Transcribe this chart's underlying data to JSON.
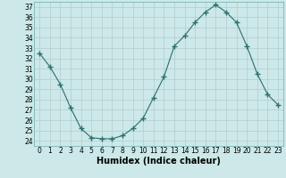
{
  "x": [
    0,
    1,
    2,
    3,
    4,
    5,
    6,
    7,
    8,
    9,
    10,
    11,
    12,
    13,
    14,
    15,
    16,
    17,
    18,
    19,
    20,
    21,
    22,
    23
  ],
  "y": [
    32.5,
    31.2,
    29.5,
    27.2,
    25.2,
    24.3,
    24.2,
    24.2,
    24.5,
    25.2,
    26.2,
    28.2,
    30.2,
    33.2,
    34.2,
    35.5,
    36.5,
    37.2,
    36.5,
    35.5,
    33.2,
    30.5,
    28.5,
    27.5
  ],
  "line_color": "#2d6e6e",
  "marker": "+",
  "marker_size": 4,
  "bg_color": "#cce8e8",
  "grid_color": "#b0cccc",
  "xlabel": "Humidex (Indice chaleur)",
  "xlim": [
    -0.5,
    23.5
  ],
  "ylim": [
    23.5,
    37.5
  ],
  "yticks": [
    24,
    25,
    26,
    27,
    28,
    29,
    30,
    31,
    32,
    33,
    34,
    35,
    36,
    37
  ],
  "xticks": [
    0,
    1,
    2,
    3,
    4,
    5,
    6,
    7,
    8,
    9,
    10,
    11,
    12,
    13,
    14,
    15,
    16,
    17,
    18,
    19,
    20,
    21,
    22,
    23
  ],
  "tick_fontsize": 5.5,
  "label_fontsize": 7
}
